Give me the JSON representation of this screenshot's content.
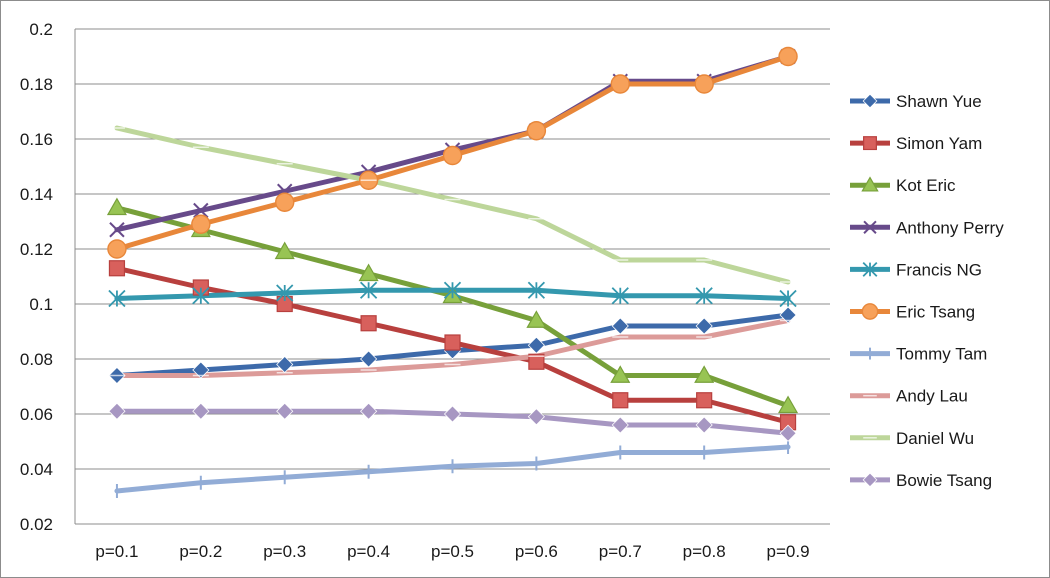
{
  "chart_data": {
    "type": "line",
    "title": "",
    "xlabel": "",
    "ylabel": "",
    "categories": [
      "p=0.1",
      "p=0.2",
      "p=0.3",
      "p=0.4",
      "p=0.5",
      "p=0.6",
      "p=0.7",
      "p=0.8",
      "p=0.9"
    ],
    "ylim": [
      0.02,
      0.2
    ],
    "yticks": [
      "0.02",
      "0.04",
      "0.06",
      "0.08",
      "0.1",
      "0.12",
      "0.14",
      "0.16",
      "0.18",
      "0.2"
    ],
    "grid": "horizontal",
    "legend": "right",
    "series": [
      {
        "name": "Shawn Yue",
        "color": "#3d6aaa",
        "marker": "diamond",
        "values": [
          0.074,
          0.076,
          0.078,
          0.08,
          0.083,
          0.085,
          0.092,
          0.092,
          0.096
        ]
      },
      {
        "name": "Simon Yam",
        "color": "#b8403e",
        "marker": "square",
        "values": [
          0.113,
          0.106,
          0.1,
          0.093,
          0.086,
          0.079,
          0.065,
          0.065,
          0.057
        ]
      },
      {
        "name": "Kot Eric",
        "color": "#77a03a",
        "marker": "triangle",
        "values": [
          0.135,
          0.127,
          0.119,
          0.111,
          0.103,
          0.094,
          0.074,
          0.074,
          0.063
        ]
      },
      {
        "name": "Anthony Perry",
        "color": "#674a8a",
        "marker": "x",
        "values": [
          0.127,
          0.134,
          0.141,
          0.148,
          0.156,
          0.163,
          0.181,
          0.181,
          0.19
        ]
      },
      {
        "name": "Francis NG",
        "color": "#3498ae",
        "marker": "star",
        "values": [
          0.102,
          0.103,
          0.104,
          0.105,
          0.105,
          0.105,
          0.103,
          0.103,
          0.102
        ]
      },
      {
        "name": "Eric Tsang",
        "color": "#e8873a",
        "marker": "circle",
        "values": [
          0.12,
          0.129,
          0.137,
          0.145,
          0.154,
          0.163,
          0.18,
          0.18,
          0.19
        ]
      },
      {
        "name": "Tommy Tam",
        "color": "#92acd6",
        "marker": "plus",
        "values": [
          0.032,
          0.035,
          0.037,
          0.039,
          0.041,
          0.042,
          0.046,
          0.046,
          0.048
        ]
      },
      {
        "name": "Andy Lau",
        "color": "#dc9b99",
        "marker": "dash",
        "values": [
          0.074,
          0.074,
          0.075,
          0.076,
          0.078,
          0.081,
          0.088,
          0.088,
          0.094
        ]
      },
      {
        "name": "Daniel Wu",
        "color": "#bdd69a",
        "marker": "dash",
        "values": [
          0.164,
          0.157,
          0.151,
          0.145,
          0.138,
          0.131,
          0.116,
          0.116,
          0.108
        ]
      },
      {
        "name": "Bowie Tsang",
        "color": "#a797c2",
        "marker": "diamond",
        "values": [
          0.061,
          0.061,
          0.061,
          0.061,
          0.06,
          0.059,
          0.056,
          0.056,
          0.053
        ]
      }
    ]
  }
}
